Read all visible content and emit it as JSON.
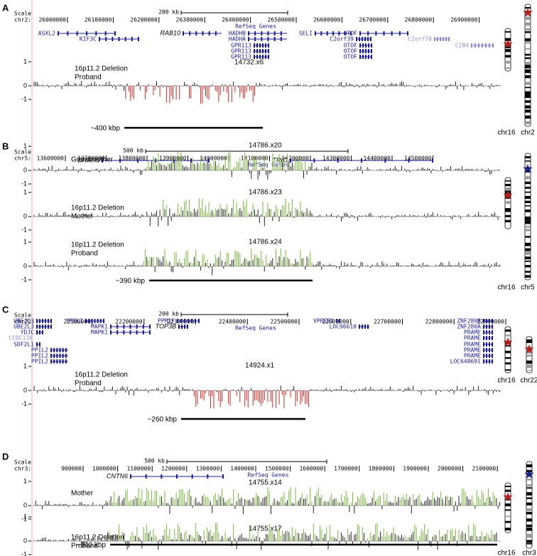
{
  "panels": [
    {
      "label": "A",
      "scale_label": "Scale",
      "chrom": "chr2:",
      "scale_bar": "200 kb",
      "positions": [
        26000000,
        26100000,
        26200000,
        26300000,
        26400000,
        26500000,
        26600000,
        26700000,
        26800000,
        26900000
      ],
      "track_title": "RefSeq Genes",
      "genes": [
        "ASXL2",
        "KIF3C",
        "RAB10",
        "HADHB",
        "HADHA",
        "GPR113",
        "GPR113",
        "GPR113",
        "SELI",
        "C2orf39",
        "OTOF",
        "OTOF",
        "OTOF",
        "OTOF",
        "C2orf70",
        "CIB4"
      ],
      "tracks": [
        {
          "id": "14732.x6",
          "labels": [
            "16p11.2 Deletion",
            "Proband"
          ],
          "ticks": [
            "1",
            "0",
            "-1"
          ]
        }
      ],
      "span": "~400 kbp",
      "ideograms": [
        "chr16",
        "chr2"
      ]
    },
    {
      "label": "B",
      "scale_label": "Scale",
      "chrom": "chr5:",
      "scale_bar": "500 kb",
      "positions": [
        13600000,
        13700000,
        13800000,
        13900000,
        14000000,
        14100000,
        14200000,
        14300000,
        14400000,
        14500000
      ],
      "track_title": "RefSeq Genes",
      "genes": [
        "DNAH5",
        "TRIO"
      ],
      "tracks": [
        {
          "id": "14786.x20",
          "labels": [
            "Grandmother"
          ],
          "ticks": [
            "1",
            "0",
            "-1"
          ]
        },
        {
          "id": "14786.x23",
          "labels": [
            "16p11.2 Deletion",
            "Mother"
          ],
          "ticks": [
            "1",
            "0",
            "-1"
          ]
        },
        {
          "id": "14786.x24",
          "labels": [
            "16p11.2 Deletion",
            "Proband"
          ],
          "ticks": [
            "1",
            "0",
            "-1"
          ]
        }
      ],
      "span": "~390 kbp",
      "ideograms": [
        "chr16",
        "chr5"
      ]
    },
    {
      "label": "C",
      "scale_label": "Scale",
      "chrom": "chr22:",
      "scale_bar": "200 kb",
      "positions": [
        22100000,
        22200000,
        22300000,
        22400000,
        22500000,
        22600000,
        22700000,
        22800000,
        22900000
      ],
      "track_title": "RefSeq Genes",
      "genes": [
        "UBE2L3",
        "UBE2L3",
        "YDJC",
        "CCDC116",
        "SDF2L1",
        "PPIL2",
        "PPIL2",
        "PPIL2",
        "YPEL1",
        "MAPK1",
        "MAPK1",
        "PPM1F",
        "TOP3B",
        "VPREB1",
        "LOC96610",
        "ZNF280B",
        "ZNF280A",
        "PRAME",
        "PRAME",
        "PRAME",
        "PRAME",
        "PRAME",
        "LOC648691"
      ],
      "tracks": [
        {
          "id": "14924.x1",
          "labels": [
            "16p11.2 Deletion",
            "Proband"
          ],
          "ticks": [
            "1",
            "0",
            "-1"
          ]
        }
      ],
      "span": "~260 kbp",
      "ideograms": [
        "chr16",
        "chr22"
      ]
    },
    {
      "label": "D",
      "scale_label": "Scale",
      "chrom": "chr3:",
      "scale_bar": "500 kb",
      "positions": [
        900000,
        1000000,
        1100000,
        1200000,
        1300000,
        1400000,
        1500000,
        1600000,
        1700000,
        1800000,
        1900000,
        2000000,
        2100000
      ],
      "track_title": "RefSeq Genes",
      "genes": [
        "CNTN6"
      ],
      "tracks": [
        {
          "id": "14755.x14",
          "labels": [
            "Mother"
          ],
          "ticks": [
            "1",
            "0",
            "-1"
          ]
        },
        {
          "id": "14755.x17",
          "labels": [
            "16p11.2 Deletion",
            "Proband"
          ],
          "ticks": [
            "1",
            "0",
            "-1"
          ]
        }
      ],
      "span": "~840 kbp",
      "ideograms": [
        "chr16",
        "chr3"
      ]
    }
  ]
}
